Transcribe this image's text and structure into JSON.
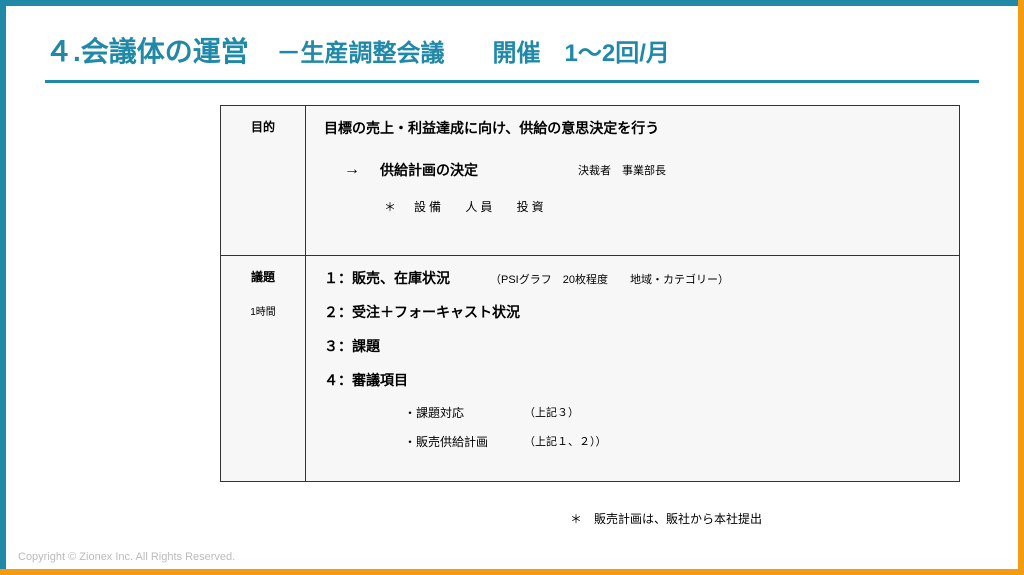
{
  "colors": {
    "accent_blue": "#2089a8",
    "accent_orange": "#f39c12",
    "table_bg": "#f7f7f7",
    "border": "#333333",
    "copyright_gray": "#bbbbbb"
  },
  "title": {
    "main": "４.会議体の運営",
    "subtitle": "－生産調整会議　　開催　1～2回/月"
  },
  "purpose": {
    "label": "目的",
    "main_text": "目標の売上・利益達成に向け、供給の意思決定を行う",
    "arrow": "→",
    "decision": "供給計画の決定",
    "decider": "決裁者　事業部長",
    "sub_items": "＊　設備　 人員　 投資"
  },
  "agenda": {
    "label": "議題",
    "duration": "1時間",
    "items": [
      {
        "num": "１：",
        "text": "販売、在庫状況",
        "note": "（PSIグラフ　20枚程度　　地域・カテゴリー）"
      },
      {
        "num": "２：",
        "text": "受注＋フォーキャスト状況",
        "note": ""
      },
      {
        "num": "３：",
        "text": "課題",
        "note": ""
      },
      {
        "num": "４：",
        "text": "審議項目",
        "note": ""
      }
    ],
    "sub_items": [
      {
        "label": "・課題対応",
        "note": "（上記３）"
      },
      {
        "label": "・販売供給計画",
        "note": "（上記１、２））"
      }
    ]
  },
  "footnote": "＊　販売計画は、販社から本社提出",
  "copyright": "Copyright © Zionex Inc. All Rights Reserved."
}
